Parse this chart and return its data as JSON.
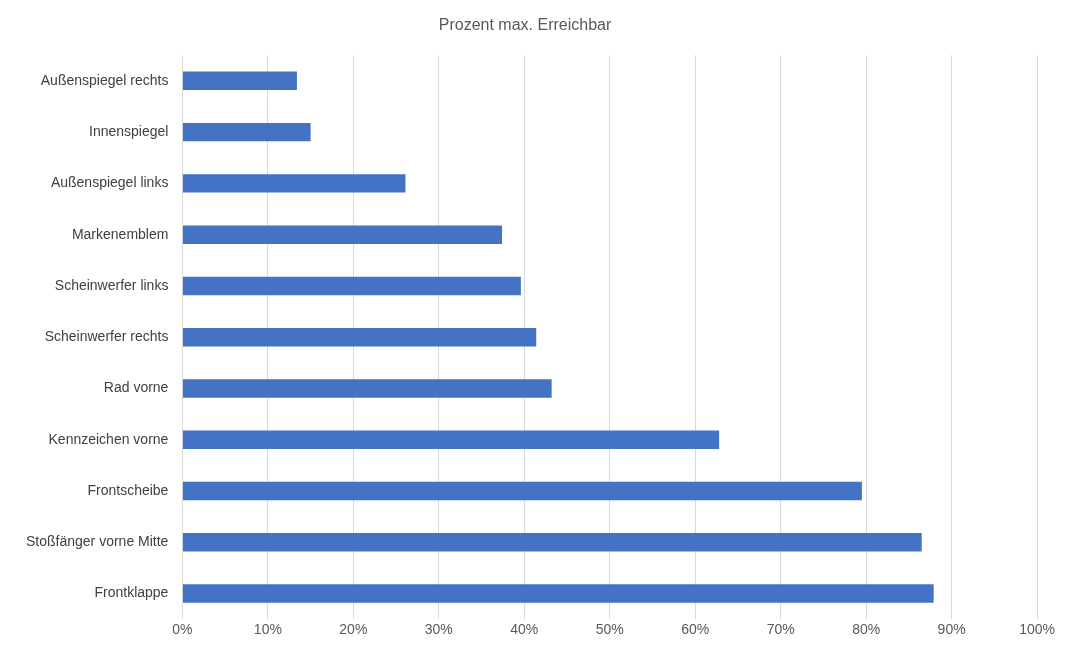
{
  "chart_data": {
    "type": "bar",
    "orientation": "horizontal",
    "title": "Prozent max. Erreichbar",
    "categories": [
      "Außenspiegel rechts",
      "Innenspiegel",
      "Außenspiegel links",
      "Markenemblem",
      "Scheinwerfer links",
      "Scheinwerfer rechts",
      "Rad vorne",
      "Kennzeichen vorne",
      "Frontscheibe",
      "Stoßfänger vorne Mitte",
      "Frontklappe"
    ],
    "values": [
      13.4,
      15.0,
      26.1,
      37.4,
      39.6,
      41.4,
      43.2,
      62.8,
      79.5,
      86.5,
      87.9
    ],
    "color": "#4472c4",
    "xlim": [
      0,
      100
    ],
    "xticks": [
      {
        "value": 0,
        "label": "0%"
      },
      {
        "value": 10,
        "label": "10%"
      },
      {
        "value": 20,
        "label": "20%"
      },
      {
        "value": 30,
        "label": "30%"
      },
      {
        "value": 40,
        "label": "40%"
      },
      {
        "value": 50,
        "label": "50%"
      },
      {
        "value": 60,
        "label": "60%"
      },
      {
        "value": 70,
        "label": "70%"
      },
      {
        "value": 80,
        "label": "80%"
      },
      {
        "value": 90,
        "label": "90%"
      },
      {
        "value": 100,
        "label": "100%"
      }
    ],
    "grid": "x",
    "legend": false
  }
}
